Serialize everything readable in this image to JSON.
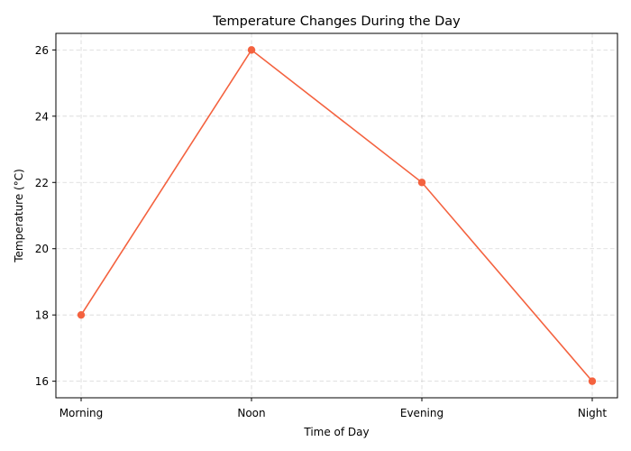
{
  "chart_data": {
    "type": "line",
    "title": "Temperature Changes During the Day",
    "xlabel": "Time of Day",
    "ylabel": "Temperature (°C)",
    "categories": [
      "Morning",
      "Noon",
      "Evening",
      "Night"
    ],
    "series": [
      {
        "values": [
          18,
          26,
          22,
          16
        ],
        "color": "#f4623f",
        "marker": "circle"
      }
    ],
    "ylim": [
      15.5,
      26.5
    ],
    "yticks": [
      16,
      18,
      20,
      22,
      24,
      26
    ],
    "grid": true
  }
}
